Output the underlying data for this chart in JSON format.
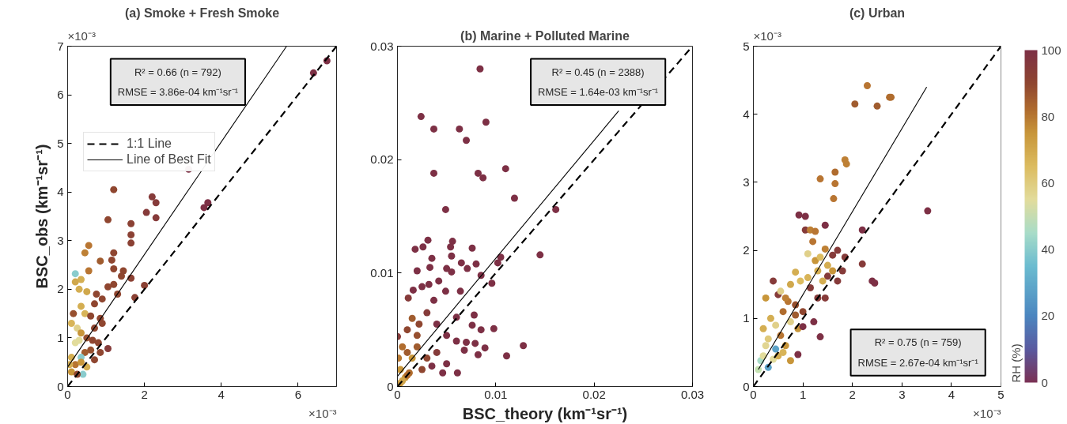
{
  "chart_data": [
    {
      "type": "scatter",
      "title": "(a) Smoke + Fresh Smoke",
      "ylabel": "BSC_obs (km⁻¹sr⁻¹)",
      "marker": "circle",
      "legend": "top left",
      "xlim": [
        0,
        7
      ],
      "ylim": [
        0,
        7
      ],
      "xticks": [
        0,
        2,
        4,
        6
      ],
      "yticks": [
        0,
        1,
        2,
        3,
        4,
        5,
        6,
        7
      ],
      "annotations": [
        "R² = 0.66 (n = 792)",
        "RMSE = 3.86e-04 km⁻¹sr⁻¹",
        "×10⁻³",
        "×10⁻³"
      ],
      "series": [
        {
          "type": "scatter",
          "x": [
            6.4,
            6.75,
            3.15,
            3.55,
            3.65,
            2.2,
            2.3,
            2.3,
            2.05,
            1.2,
            1.05,
            1.65,
            1.65,
            1.65,
            1.65,
            2,
            1.75,
            1.45,
            1.4,
            1.2,
            1.15,
            1.2,
            1.3,
            1.2,
            1.05,
            0.55,
            0.45,
            0.85,
            0.55,
            0.2,
            0.35,
            0.2,
            0.3,
            0.5,
            0.75,
            0.9,
            0.7,
            0.15,
            0.35,
            0.45,
            0.6,
            0.85,
            0.9,
            0.7,
            0.1,
            0.25,
            0.35,
            0.2,
            0.3,
            0.5,
            0.65,
            0.8,
            1.05,
            0.6,
            0.45,
            0.35,
            0.1,
            0.2,
            0.35,
            0.5,
            0.4,
            0.1,
            0.25,
            0.05,
            0.7,
            0.85
          ],
          "values": [
            6.45,
            6.7,
            4.47,
            3.68,
            3.78,
            3.9,
            3.78,
            3.47,
            3.58,
            4.05,
            3.43,
            3.35,
            3.12,
            2.95,
            2.23,
            2.08,
            1.83,
            2.38,
            2.27,
            2.75,
            2.6,
            2.42,
            1.9,
            2.1,
            2.05,
            2.9,
            2.75,
            2.58,
            2.38,
            2.32,
            2.2,
            2.15,
            2,
            1.95,
            1.9,
            1.8,
            1.7,
            1.5,
            1.65,
            1.5,
            1.45,
            1.4,
            1.3,
            1.2,
            1.3,
            1.2,
            1.1,
            0.9,
            0.95,
            1,
            0.95,
            0.9,
            0.78,
            0.75,
            0.7,
            0.6,
            0.6,
            0.45,
            0.5,
            0.4,
            0.25,
            0.3,
            0.25,
            0.45,
            0.55,
            0.7
          ],
          "colors": [
            "#7d3045",
            "#7d3045",
            "#7d3045",
            "#7d3045",
            "#7d3045",
            "#863b3a",
            "#863b3a",
            "#863b3a",
            "#863b3a",
            "#8f4630",
            "#8f4630",
            "#8b4134",
            "#8b4134",
            "#8b4134",
            "#8b4134",
            "#8b4134",
            "#8b4134",
            "#8f4630",
            "#8f4630",
            "#8f4630",
            "#8f4630",
            "#8f4630",
            "#8f4630",
            "#8f4630",
            "#8f4630",
            "#b87532",
            "#be8035",
            "#a05c2f",
            "#b87532",
            "#8acccd",
            "#d4ae52",
            "#d0a84c",
            "#d4ae52",
            "#d0a84c",
            "#8f4630",
            "#8f4630",
            "#8f4630",
            "#97502f",
            "#d4ae52",
            "#d8b458",
            "#8f4630",
            "#8f4630",
            "#8f4630",
            "#8f4630",
            "#d8b458",
            "#e0d08a",
            "#c8963a",
            "#e2dc9c",
            "#e2dc9c",
            "#97502f",
            "#8f4630",
            "#8f4630",
            "#863b3a",
            "#97502f",
            "#a05c2f",
            "#8acccd",
            "#d4ae52",
            "#b87532",
            "#c8963a",
            "#d4ae52",
            "#8acccd",
            "#c8963a",
            "#8f4630",
            "#d4ae52",
            "#8f4630",
            "#8f4630"
          ]
        },
        {
          "type": "line",
          "name": "1:1 Line",
          "color": "#000000",
          "line_style": "dashed",
          "marker": "none",
          "x": [
            0,
            7
          ],
          "values": [
            0,
            7
          ]
        },
        {
          "type": "line",
          "name": "Line of Best Fit",
          "color": "#000000",
          "line_style": "solid",
          "marker": "none",
          "x": [
            0,
            5.7
          ],
          "values": [
            0.4,
            7
          ]
        }
      ]
    },
    {
      "type": "scatter",
      "title": "(b) Marine + Polluted Marine",
      "xlabel": "BSC_theory (km⁻¹sr⁻¹)",
      "marker": "circle",
      "xlim": [
        0,
        0.03
      ],
      "ylim": [
        0,
        0.03
      ],
      "xticks": [
        0,
        0.01,
        0.02,
        0.03
      ],
      "yticks": [
        0,
        0.01,
        0.02,
        0.03
      ],
      "annotations": [
        "R² = 0.45 (n = 2388)",
        "RMSE = 1.64e-03 km⁻¹sr⁻¹"
      ],
      "series": [
        {
          "type": "scatter",
          "x": [
            0.0084,
            0.0024,
            0.0037,
            0.0063,
            0.009,
            0.007,
            0.0037,
            0.0082,
            0.0087,
            0.011,
            0.0119,
            0.0049,
            0.0161,
            0.0145,
            0.0105,
            0.0102,
            0.0031,
            0.0056,
            0.0018,
            0.0026,
            0.0054,
            0.0076,
            0.0035,
            0.0055,
            0.002,
            0.0033,
            0.005,
            0.0055,
            0.0065,
            0.0071,
            0.008,
            0.0085,
            0.0096,
            0.0064,
            0.0049,
            0.0025,
            0.0016,
            0.0032,
            0.0042,
            0.0037,
            0.0011,
            0.0078,
            0.006,
            0.0098,
            0.0076,
            0.0085,
            0.0128,
            0.0111,
            0.0089,
            0.0082,
            0.0079,
            0.007,
            0.0068,
            0.0061,
            0.0046,
            0,
            0.001,
            0.0015,
            0.0022,
            0.003,
            0.004,
            0.005,
            0.006,
            0.0005,
            0.001,
            0.0015,
            0.002,
            0.003,
            0.004,
            0.005,
            0.0025,
            0.0035,
            0.0003,
            0.0008,
            0.0012,
            0.0003,
            0.0001,
            0.002,
            0.001,
            0.0005
          ],
          "values": [
            0.028,
            0.0238,
            0.0227,
            0.0227,
            0.0233,
            0.0217,
            0.0188,
            0.0188,
            0.0184,
            0.0192,
            0.0166,
            0.0156,
            0.0156,
            0.0116,
            0.0114,
            0.0109,
            0.0129,
            0.0128,
            0.0121,
            0.0123,
            0.0123,
            0.0122,
            0.0113,
            0.0115,
            0.0102,
            0.0105,
            0.0104,
            0.0101,
            0.0109,
            0.0104,
            0.0108,
            0.0098,
            0.0091,
            0.0084,
            0.0084,
            0.0088,
            0.0085,
            0.009,
            0.0093,
            0.0076,
            0.0078,
            0.0063,
            0.0061,
            0.0051,
            0.0054,
            0.005,
            0.0036,
            0.0027,
            0.0034,
            0.0028,
            0.0038,
            0.0039,
            0.0032,
            0.0012,
            0.0012,
            0.0044,
            0.005,
            0.006,
            0.0055,
            0.0065,
            0.0055,
            0.0045,
            0.004,
            0.0035,
            0.003,
            0.0025,
            0.0035,
            0.0025,
            0.003,
            0.002,
            0.0015,
            0.0018,
            0.0015,
            0.0008,
            0.0012,
            0.0003,
            0.0025,
            0.0045,
            0.001,
            0.0005
          ],
          "colors": [
            "#7d3045",
            "#7d3045",
            "#7d3045",
            "#7d3045",
            "#7d3045",
            "#7d3045",
            "#7d3045",
            "#7d3045",
            "#7d3045",
            "#7d3045",
            "#7d3045",
            "#7d3045",
            "#7d3045",
            "#7d3045",
            "#7d3045",
            "#7d3045",
            "#7d3045",
            "#7d3045",
            "#7d3045",
            "#7d3045",
            "#7d3045",
            "#7d3045",
            "#7d3045",
            "#7d3045",
            "#7d3045",
            "#7d3045",
            "#7d3045",
            "#7d3045",
            "#7d3045",
            "#7d3045",
            "#7d3045",
            "#7d3045",
            "#7d3045",
            "#7d3045",
            "#7d3045",
            "#7d3045",
            "#7d3045",
            "#7d3045",
            "#7d3045",
            "#7d3045",
            "#863b3a",
            "#7d3045",
            "#7d3045",
            "#7d3045",
            "#7d3045",
            "#7d3045",
            "#7d3045",
            "#7d3045",
            "#7d3045",
            "#7d3045",
            "#7d3045",
            "#7d3045",
            "#7d3045",
            "#7d3045",
            "#7d3045",
            "#863b3a",
            "#8f4630",
            "#a05c2f",
            "#8f4630",
            "#863b3a",
            "#7d3045",
            "#7d3045",
            "#7d3045",
            "#b06c2e",
            "#a05c2f",
            "#c8963a",
            "#a05c2f",
            "#8f4630",
            "#863b3a",
            "#7d3045",
            "#8f4630",
            "#7d3045",
            "#c8963a",
            "#c8963a",
            "#b06c2e",
            "#c8963a",
            "#b87a33",
            "#97502f",
            "#b06c2e",
            "#cfa44a"
          ]
        },
        {
          "type": "line",
          "color": "#000000",
          "line_style": "dashed",
          "marker": "none",
          "x": [
            0,
            0.03
          ],
          "values": [
            0,
            0.03
          ]
        },
        {
          "type": "line",
          "color": "#000000",
          "line_style": "solid",
          "marker": "none",
          "x": [
            0,
            0.0225
          ],
          "values": [
            0.0009,
            0.0243
          ]
        }
      ]
    },
    {
      "type": "scatter",
      "title": "(c) Urban",
      "marker": "circle",
      "clabel": "RH (%)",
      "clim": [
        0,
        100
      ],
      "cticks": [
        0,
        20,
        40,
        60,
        80,
        100
      ],
      "xlim": [
        0,
        5
      ],
      "ylim": [
        0,
        5
      ],
      "xticks": [
        0,
        1,
        2,
        3,
        4,
        5
      ],
      "yticks": [
        0,
        1,
        2,
        3,
        4,
        5
      ],
      "annotations": [
        "R² = 0.75 (n = 759)",
        "RMSE = 2.67e-04 km⁻¹sr⁻¹",
        "×10⁻³",
        "×10⁻³"
      ],
      "series": [
        {
          "type": "scatter",
          "x": [
            2.3,
            2.05,
            2.5,
            2.75,
            2.78,
            1.85,
            1.88,
            1.35,
            1.65,
            1.65,
            1.62,
            3.52,
            0.92,
            1.05,
            1.05,
            1.45,
            2.2,
            1.15,
            1.25,
            1.2,
            1.45,
            1.7,
            1.85,
            1.6,
            2.2,
            1.8,
            1.7,
            2.4,
            2.45,
            1.5,
            1.25,
            1.1,
            1.35,
            1.5,
            1.3,
            1.6,
            0.85,
            0.95,
            1.1,
            0.75,
            1.4,
            0.4,
            0.5,
            1.15,
            1.3,
            1.45,
            0.25,
            0.55,
            0.7,
            0.85,
            1,
            0.6,
            0.35,
            0.45,
            0.75,
            0.9,
            1,
            1.22,
            1.35,
            0.9,
            0.75,
            0.2,
            0.3,
            0.55,
            0.65,
            0.45,
            0.3,
            0.15,
            0.1,
            0.2,
            0.4,
            0.5,
            0.6,
            0.25,
            0.85,
            0.65
          ],
          "values": [
            4.42,
            4.15,
            4.12,
            4.25,
            4.25,
            3.33,
            3.27,
            3.05,
            3.15,
            2.98,
            2.76,
            2.58,
            2.52,
            2.5,
            2.3,
            2.37,
            2.3,
            2.3,
            2.28,
            2.13,
            2.02,
            2,
            1.9,
            1.93,
            1.8,
            1.7,
            1.55,
            1.55,
            1.52,
            1.62,
            1.85,
            1.95,
            1.9,
            1.78,
            1.7,
            1.7,
            1.68,
            1.55,
            1.6,
            1.5,
            1.55,
            1.55,
            1.35,
            1.45,
            1.3,
            1.3,
            1.3,
            1.4,
            1.25,
            1.2,
            1.1,
            1.1,
            1,
            0.9,
            0.95,
            0.85,
            0.88,
            0.95,
            0.73,
            0.47,
            0.38,
            0.85,
            0.7,
            0.75,
            0.6,
            0.55,
            0.28,
            0.38,
            0.25,
            0.45,
            0.4,
            0.45,
            0.5,
            0.6,
            1.05,
            1.3
          ],
          "colors": [
            "#b87532",
            "#a05c2f",
            "#a05c2f",
            "#b06c2e",
            "#b06c2e",
            "#be8035",
            "#be8035",
            "#b87532",
            "#b06c2e",
            "#b87532",
            "#b87532",
            "#7d3045",
            "#7d3045",
            "#7d3045",
            "#863b3a",
            "#7d3045",
            "#7d3045",
            "#be8035",
            "#b87532",
            "#b87532",
            "#be8035",
            "#863b3a",
            "#863b3a",
            "#863b3a",
            "#863b3a",
            "#863b3a",
            "#863b3a",
            "#7d3045",
            "#7d3045",
            "#863b3a",
            "#c8963a",
            "#e0d08a",
            "#dcbc60",
            "#d4ae52",
            "#d4ae52",
            "#c8963a",
            "#d4ae52",
            "#dcbc60",
            "#d8b458",
            "#d0a84c",
            "#d4ae52",
            "#863b3a",
            "#863b3a",
            "#863b3a",
            "#863b3a",
            "#863b3a",
            "#c8963a",
            "#e0d08a",
            "#b87532",
            "#97502f",
            "#8f4630",
            "#b06c2e",
            "#d4ae52",
            "#e0d08a",
            "#e0d08a",
            "#c8963a",
            "#7d3045",
            "#7d3045",
            "#7d3045",
            "#7d3045",
            "#c8963a",
            "#d4ae52",
            "#dfc97a",
            "#b87532",
            "#c8963a",
            "#5da3c8",
            "#5da3c8",
            "#a8dcc8",
            "#c5e2b2",
            "#e2dc9c",
            "#e2dc9c",
            "#d4ae52",
            "#d8b458",
            "#e1d592",
            "#a05c2f",
            "#be8035"
          ]
        },
        {
          "type": "line",
          "color": "#000000",
          "line_style": "dashed",
          "marker": "none",
          "x": [
            0,
            5
          ],
          "values": [
            0,
            5
          ]
        },
        {
          "type": "line",
          "color": "#000000",
          "line_style": "solid",
          "marker": "none",
          "x": [
            0.1,
            3.5
          ],
          "values": [
            0.25,
            4.4
          ]
        }
      ]
    }
  ]
}
